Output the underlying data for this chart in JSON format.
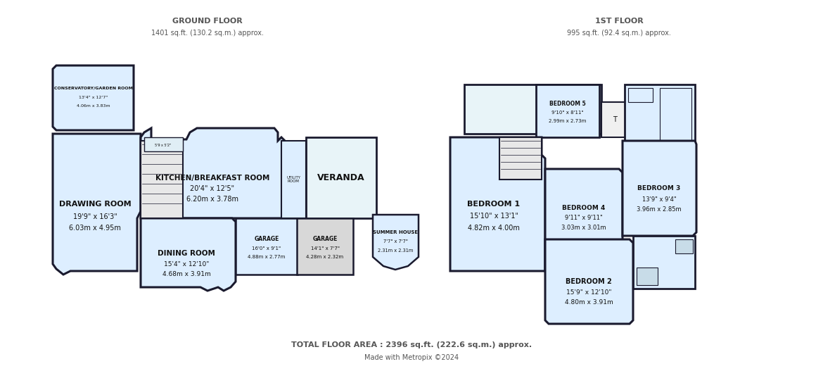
{
  "bg_color": "#ffffff",
  "wall_color": "#1a1a2e",
  "fill_color": "#ddeeff",
  "light_fill": "#e8f4f8",
  "grey_fill": "#d8d8d8",
  "text_color": "#555555",
  "dark_text": "#111111",
  "ground_floor_label": "GROUND FLOOR",
  "ground_floor_area": "1401 sq.ft. (130.2 sq.m.) approx.",
  "first_floor_label": "1ST FLOOR",
  "first_floor_area": "995 sq.ft. (92.4 sq.m.) approx.",
  "total_area": "TOTAL FLOOR AREA : 2396 sq.ft. (222.6 sq.m.) approx.",
  "credit": "Made with Metropix ©2024"
}
